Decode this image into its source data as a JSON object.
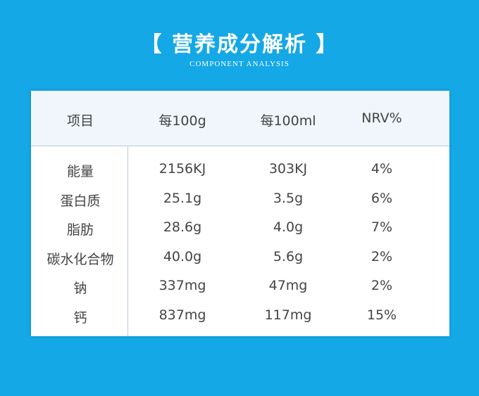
{
  "header": {
    "title": "【 营养成分解析 】",
    "subtitle": "COMPONENT ANALYSIS"
  },
  "table": {
    "columns": [
      "项目",
      "每100g",
      "每100ml",
      "NRV%"
    ],
    "rows": [
      [
        "能量",
        "2156KJ",
        "303KJ",
        "4%"
      ],
      [
        "蛋白质",
        "25.1g",
        "3.5g",
        "6%"
      ],
      [
        "脂肪",
        "28.6g",
        "4.0g",
        "7%"
      ],
      [
        "碳水化合物",
        "40.0g",
        "5.6g",
        "2%"
      ],
      [
        "钠",
        "337mg",
        "47mg",
        "2%"
      ],
      [
        "钙",
        "837mg",
        "117mg",
        "15%"
      ]
    ]
  }
}
